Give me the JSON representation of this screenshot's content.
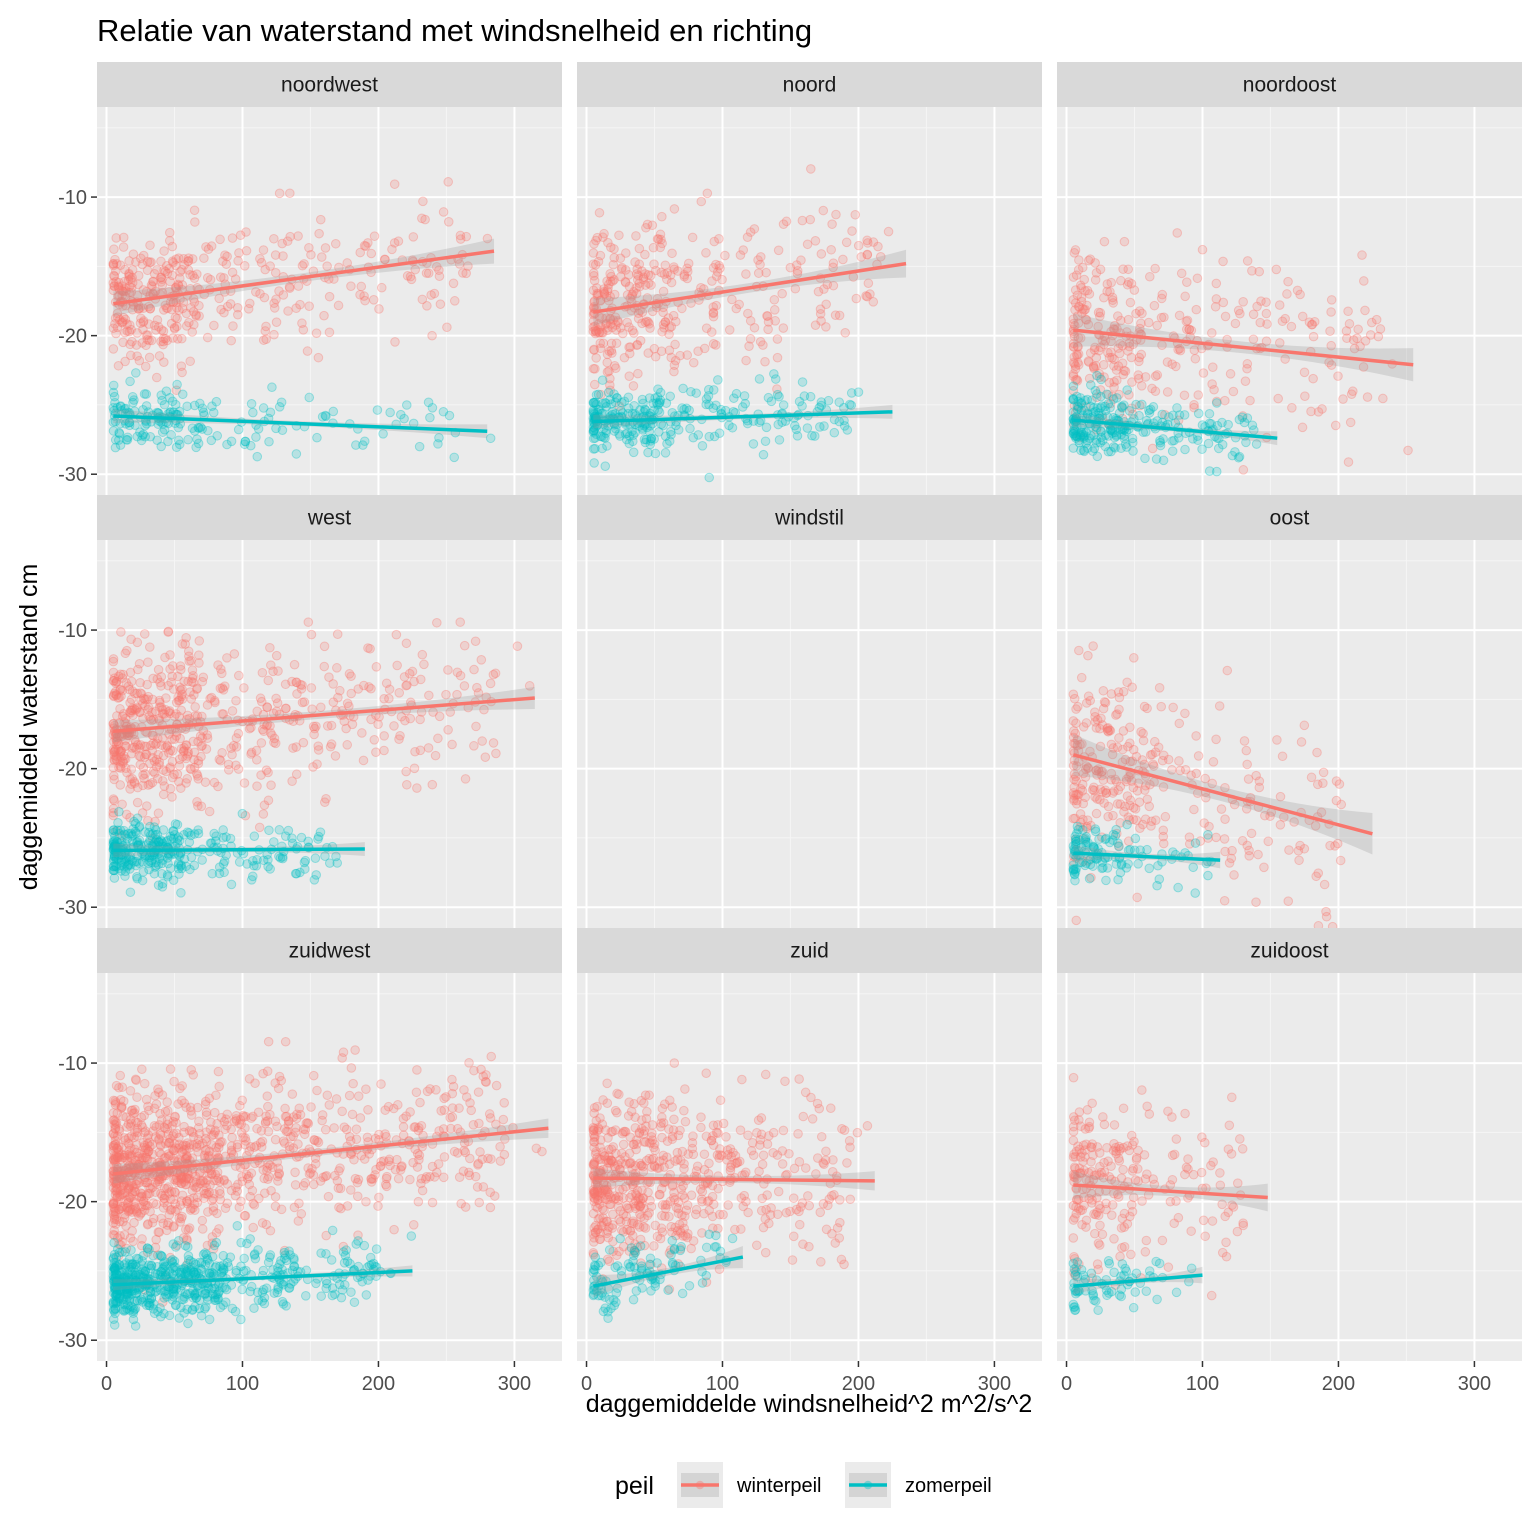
{
  "chart_data": {
    "type": "scatter",
    "title": "Relatie van waterstand met windsnelheid en richting",
    "xlabel": "daggemiddelde windsnelheid^2 m^2/s^2",
    "ylabel": "daggemiddeld waterstand cm",
    "x_ticks": [
      0,
      100,
      200,
      300
    ],
    "y_ticks": [
      -10,
      -20,
      -30
    ],
    "xlim": [
      -7,
      335
    ],
    "ylim": [
      -31.5,
      -3.5
    ],
    "legend": {
      "title": "peil",
      "position": "bottom",
      "entries": [
        {
          "key": "winterpeil",
          "label": "winterpeil",
          "color": "#F8766D"
        },
        {
          "key": "zomerpeil",
          "label": "zomerpeil",
          "color": "#00BFC4"
        }
      ]
    },
    "panels": [
      {
        "name": "noordwest",
        "has_data": true,
        "winterpeil": {
          "x_range": [
            5,
            295
          ],
          "x_max": 295,
          "x_mode": 30,
          "y_mean": -16,
          "y_sd": 2.3,
          "n": 420,
          "fit": [
            [
              5,
              -17.7
            ],
            [
              285,
              -13.9
            ]
          ],
          "ci": 0.9
        },
        "zomerpeil": {
          "x_range": [
            5,
            285
          ],
          "x_max": 285,
          "x_mode": 25,
          "y_mean": -26.2,
          "y_sd": 1.1,
          "n": 190,
          "fit": [
            [
              5,
              -25.8
            ],
            [
              280,
              -26.9
            ]
          ],
          "ci": 0.5
        }
      },
      {
        "name": "noord",
        "has_data": true,
        "winterpeil": {
          "x_range": [
            5,
            240
          ],
          "x_max": 240,
          "x_mode": 30,
          "y_mean": -17,
          "y_sd": 2.8,
          "n": 380,
          "fit": [
            [
              5,
              -18.3
            ],
            [
              235,
              -14.8
            ]
          ],
          "ci": 1.0
        },
        "zomerpeil": {
          "x_range": [
            5,
            225
          ],
          "x_max": 225,
          "x_mode": 25,
          "y_mean": -26.3,
          "y_sd": 1.1,
          "n": 300,
          "fit": [
            [
              5,
              -26.2
            ],
            [
              225,
              -25.5
            ]
          ],
          "ci": 0.5
        }
      },
      {
        "name": "noordoost",
        "has_data": true,
        "winterpeil": {
          "x_range": [
            5,
            260
          ],
          "x_max": 260,
          "x_mode": 25,
          "y_mean": -19,
          "y_sd": 3.2,
          "n": 350,
          "fit": [
            [
              5,
              -19.6
            ],
            [
              255,
              -22.1
            ]
          ],
          "ci": 1.2
        },
        "zomerpeil": {
          "x_range": [
            5,
            155
          ],
          "x_max": 155,
          "x_mode": 20,
          "y_mean": -26.5,
          "y_sd": 1.1,
          "n": 260,
          "fit": [
            [
              5,
              -26.1
            ],
            [
              155,
              -27.4
            ]
          ],
          "ci": 0.5
        }
      },
      {
        "name": "west",
        "has_data": true,
        "winterpeil": {
          "x_range": [
            5,
            320
          ],
          "x_max": 320,
          "x_mode": 35,
          "y_mean": -16.5,
          "y_sd": 2.8,
          "n": 650,
          "fit": [
            [
              5,
              -17.3
            ],
            [
              315,
              -14.9
            ]
          ],
          "ci": 0.8
        },
        "zomerpeil": {
          "x_range": [
            5,
            190
          ],
          "x_max": 190,
          "x_mode": 25,
          "y_mean": -26.2,
          "y_sd": 1.1,
          "n": 330,
          "fit": [
            [
              5,
              -25.9
            ],
            [
              190,
              -25.8
            ]
          ],
          "ci": 0.5
        }
      },
      {
        "name": "windstil",
        "has_data": false
      },
      {
        "name": "oost",
        "has_data": true,
        "winterpeil": {
          "x_range": [
            5,
            225
          ],
          "x_max": 225,
          "x_mode": 30,
          "y_mean": -19.5,
          "y_sd": 3.5,
          "n": 330,
          "fit": [
            [
              5,
              -19
            ],
            [
              225,
              -24.7
            ]
          ],
          "ci": 1.5
        },
        "zomerpeil": {
          "x_range": [
            5,
            115
          ],
          "x_max": 115,
          "x_mode": 20,
          "y_mean": -26.5,
          "y_sd": 1.0,
          "n": 120,
          "fit": [
            [
              5,
              -26.1
            ],
            [
              113,
              -26.6
            ]
          ],
          "ci": 0.6
        }
      },
      {
        "name": "zuidwest",
        "has_data": true,
        "winterpeil": {
          "x_range": [
            5,
            325
          ],
          "x_max": 325,
          "x_mode": 40,
          "y_mean": -17.5,
          "y_sd": 2.7,
          "n": 1100,
          "fit": [
            [
              5,
              -18
            ],
            [
              325,
              -14.7
            ]
          ],
          "ci": 0.7
        },
        "zomerpeil": {
          "x_range": [
            5,
            225
          ],
          "x_max": 225,
          "x_mode": 40,
          "y_mean": -26,
          "y_sd": 1.2,
          "n": 620,
          "fit": [
            [
              5,
              -26
            ],
            [
              225,
              -25
            ]
          ],
          "ci": 0.4
        }
      },
      {
        "name": "zuid",
        "has_data": true,
        "winterpeil": {
          "x_range": [
            5,
            215
          ],
          "x_max": 215,
          "x_mode": 35,
          "y_mean": -18,
          "y_sd": 2.9,
          "n": 620,
          "fit": [
            [
              5,
              -18.3
            ],
            [
              212,
              -18.5
            ]
          ],
          "ci": 0.7
        },
        "zomerpeil": {
          "x_range": [
            5,
            120
          ],
          "x_max": 120,
          "x_mode": 25,
          "y_mean": -25.8,
          "y_sd": 1.3,
          "n": 110,
          "fit": [
            [
              5,
              -26.1
            ],
            [
              115,
              -24
            ]
          ],
          "ci": 0.8
        }
      },
      {
        "name": "zuidoost",
        "has_data": true,
        "winterpeil": {
          "x_range": [
            5,
            150
          ],
          "x_max": 150,
          "x_mode": 25,
          "y_mean": -18.5,
          "y_sd": 3.0,
          "n": 240,
          "fit": [
            [
              5,
              -18.8
            ],
            [
              148,
              -19.7
            ]
          ],
          "ci": 1.0
        },
        "zomerpeil": {
          "x_range": [
            5,
            100
          ],
          "x_max": 100,
          "x_mode": 20,
          "y_mean": -26.3,
          "y_sd": 0.9,
          "n": 70,
          "fit": [
            [
              5,
              -26.1
            ],
            [
              100,
              -25.3
            ]
          ],
          "ci": 0.6
        }
      }
    ]
  }
}
